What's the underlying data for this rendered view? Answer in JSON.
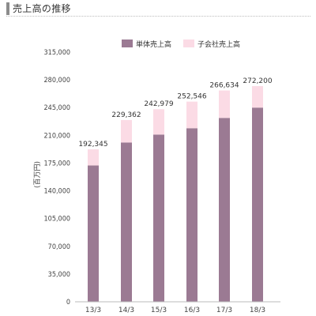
{
  "page": {
    "title": "売上高の推移"
  },
  "chart_data": {
    "type": "bar",
    "stacked": true,
    "categories": [
      "13/3",
      "14/3",
      "15/3",
      "16/3",
      "17/3",
      "18/3"
    ],
    "series": [
      {
        "name": "単体売上高",
        "color": "#9b7a93",
        "values": [
          172000,
          201000,
          211000,
          219000,
          232000,
          245000
        ]
      },
      {
        "name": "子会社売上高",
        "color": "#fbdbe5",
        "values": [
          20345,
          28362,
          31979,
          33546,
          34634,
          27200
        ]
      }
    ],
    "totals": [
      "192,345",
      "229,362",
      "242,979",
      "252,546",
      "266,634",
      "272,200"
    ],
    "ylabel": "(百万円)",
    "ylim": [
      0,
      315000
    ],
    "yticks": [
      "0",
      "35,000",
      "70,000",
      "105,000",
      "140,000",
      "175,000",
      "210,000",
      "245,000",
      "280,000",
      "315,000"
    ],
    "legend_position": "top-right",
    "grid": false
  }
}
